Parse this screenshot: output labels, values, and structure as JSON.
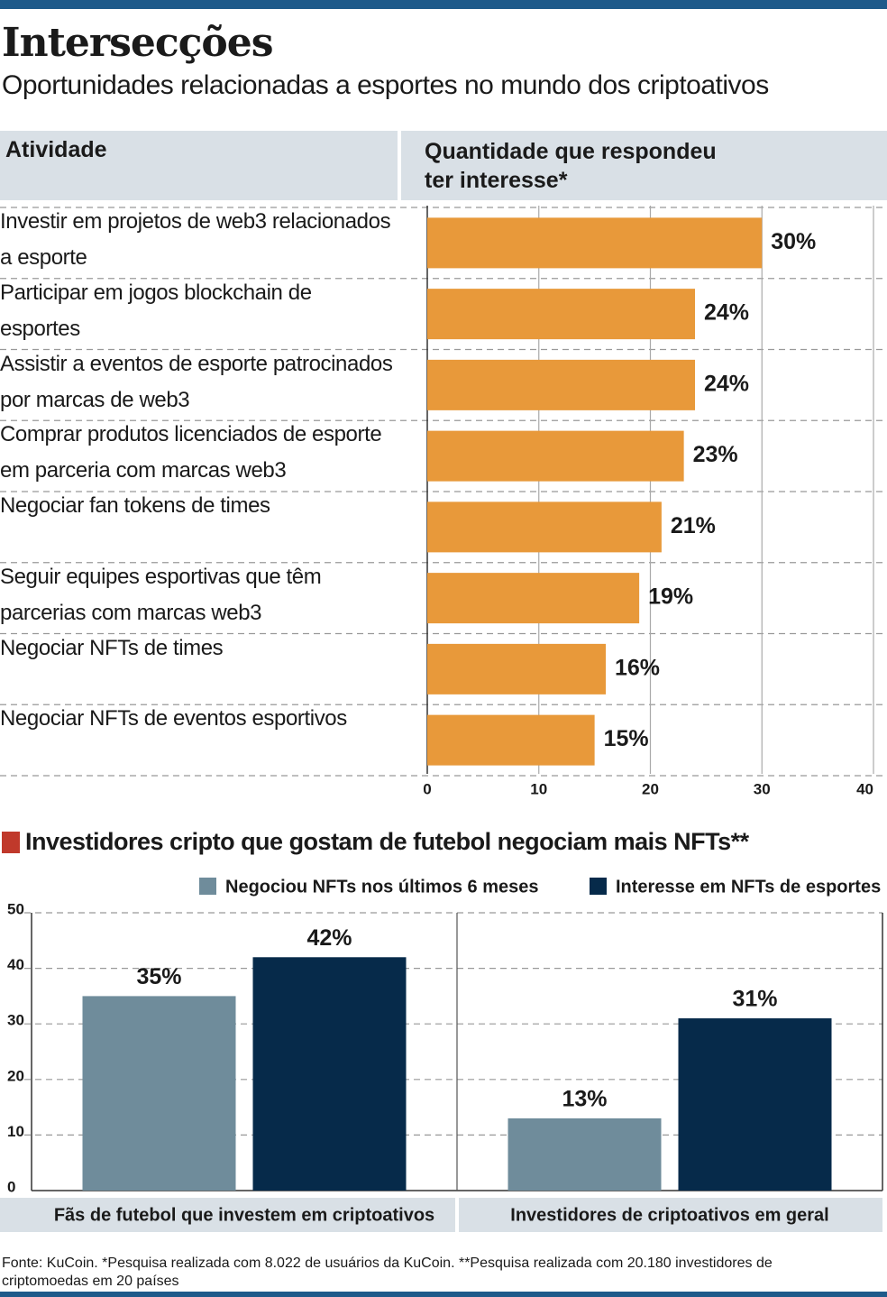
{
  "title": "Intersecções",
  "subtitle": "Oportunidades relacionadas a esportes no mundo dos criptoativos",
  "source": "Fonte: KuCoin. *Pesquisa realizada com 8.022 de usuários da KuCoin. **Pesquisa realizada com 20.180 investidores de criptomoedas em 20 países",
  "chart_data": [
    {
      "type": "hbar",
      "column_headers": [
        "Atividade",
        "Quantidade que respondeu ter interesse*"
      ],
      "categories": [
        "Investir em projetos de web3 relacionados a esporte",
        "Participar em jogos blockchain de esportes",
        "Assistir a eventos de esporte patrocinados por marcas de web3",
        "Comprar produtos licenciados de esporte em parceria com marcas web3",
        "Negociar fan tokens de times",
        "Seguir equipes esportivas que têm parcerias com marcas web3",
        "Negociar NFTs de times",
        "Negociar NFTs de eventos esportivos"
      ],
      "values": [
        30,
        24,
        24,
        23,
        21,
        19,
        16,
        15
      ],
      "value_labels": [
        "30%",
        "24%",
        "24%",
        "23%",
        "21%",
        "19%",
        "16%",
        "15%"
      ],
      "color": "#e8993a",
      "xlim": [
        0,
        40
      ],
      "xticks": [
        0,
        10,
        20,
        30,
        40
      ],
      "grid": true
    },
    {
      "type": "grouped_bar",
      "title": "Investidores cripto que gostam de futebol negociam mais NFTs**",
      "categories": [
        "Fãs de futebol que investem em criptoativos",
        "Investidores de criptoativos em geral"
      ],
      "series": [
        {
          "name": "Negociou NFTs nos últimos 6 meses",
          "color": "#6f8c9b",
          "values": [
            35,
            13
          ],
          "value_labels": [
            "35%",
            "13%"
          ]
        },
        {
          "name": "Interesse em NFTs de esportes",
          "color": "#062a4a",
          "values": [
            42,
            31
          ],
          "value_labels": [
            "42%",
            "31%"
          ]
        }
      ],
      "ylim": [
        0,
        50
      ],
      "yticks": [
        0,
        10,
        20,
        30,
        40,
        50
      ],
      "grid": true
    }
  ]
}
